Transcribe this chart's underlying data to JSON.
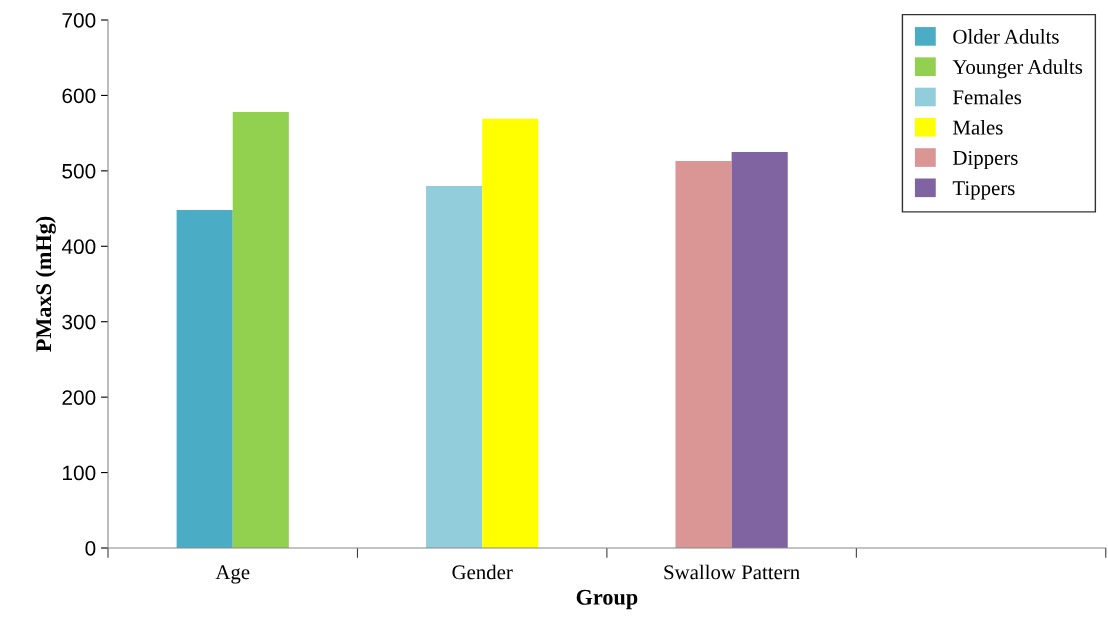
{
  "chart_data": {
    "type": "bar",
    "xlabel": "Group",
    "ylabel": "PMaxS (mHg)",
    "categories": [
      "Age",
      "Gender",
      "Swallow Pattern",
      null
    ],
    "series": [
      {
        "name": "Older Adults",
        "color": "#4bacc6",
        "values": [
          448,
          null,
          null,
          null
        ]
      },
      {
        "name": "Younger Adults",
        "color": "#92d050",
        "values": [
          578,
          null,
          null,
          null
        ]
      },
      {
        "name": "Females",
        "color": "#92cddc",
        "values": [
          null,
          480,
          null,
          null
        ]
      },
      {
        "name": "Males",
        "color": "#ffff00",
        "values": [
          null,
          569,
          null,
          null
        ]
      },
      {
        "name": "Dippers",
        "color": "#d99694",
        "values": [
          null,
          null,
          513,
          null
        ]
      },
      {
        "name": "Tippers",
        "color": "#8064a2",
        "values": [
          null,
          null,
          525,
          null
        ]
      }
    ],
    "ylim": [
      0,
      700
    ],
    "yticks": [
      0,
      100,
      200,
      300,
      400,
      500,
      600,
      700
    ],
    "grid": false,
    "legend": "top right"
  }
}
